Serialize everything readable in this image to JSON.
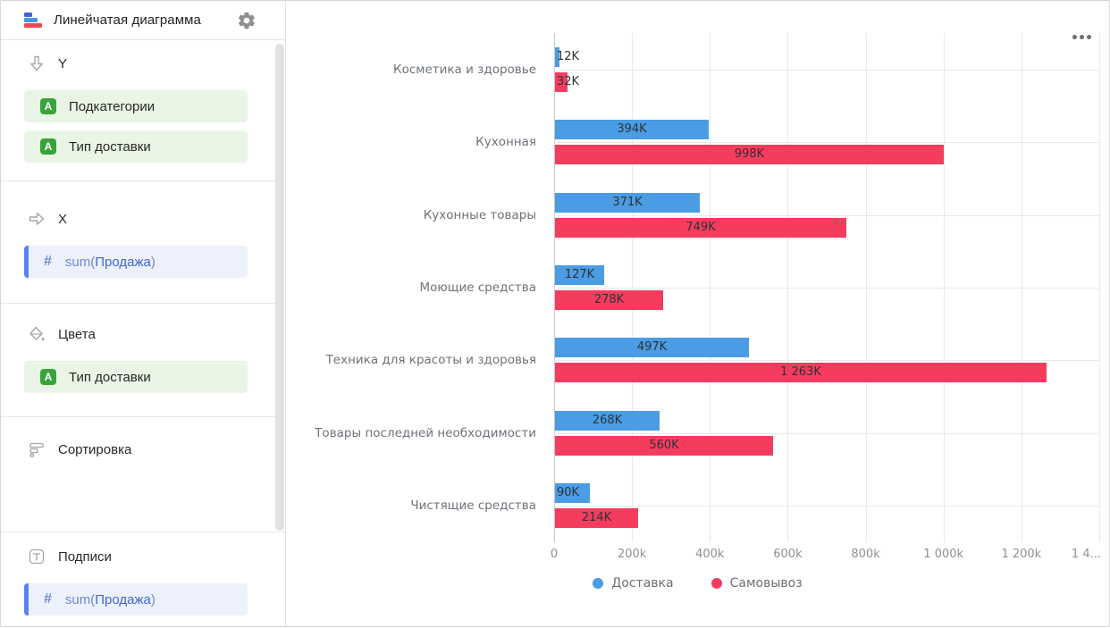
{
  "sidebar": {
    "title": "Линейчатая диаграмма",
    "field_icon_letter": "A",
    "sections": {
      "y": {
        "label": "Y",
        "fields": [
          {
            "label": "Подкатегории"
          },
          {
            "label": "Тип доставки"
          }
        ]
      },
      "x": {
        "label": "X",
        "field": {
          "prefix": "sum(",
          "name": "Продажа",
          "suffix": ")"
        }
      },
      "colors": {
        "label": "Цвета",
        "fields": [
          {
            "label": "Тип доставки"
          }
        ]
      },
      "sort": {
        "label": "Сортировка"
      },
      "labels": {
        "label": "Подписи",
        "field": {
          "prefix": "sum(",
          "name": "Продажа",
          "suffix": ")"
        }
      }
    }
  },
  "chart_data": {
    "type": "bar",
    "orientation": "horizontal",
    "title": "",
    "xlabel": "",
    "ylabel": "",
    "grid": true,
    "categories": [
      "Косметика и здоровье",
      "Кухонная",
      "Кухонные товары",
      "Моющие средства",
      "Техника для красоты и здоровья",
      "Товары последней необходимости",
      "Чистящие средства"
    ],
    "series": [
      {
        "name": "Доставка",
        "color": "#4a9ce4",
        "values": [
          12000,
          394000,
          371000,
          127000,
          497000,
          268000,
          90000
        ],
        "labels": [
          "12K",
          "394K",
          "371K",
          "127K",
          "497K",
          "268K",
          "90K"
        ]
      },
      {
        "name": "Самовывоз",
        "color": "#f53c5e",
        "values": [
          32000,
          998000,
          749000,
          278000,
          1263000,
          560000,
          214000
        ],
        "labels": [
          "32K",
          "998K",
          "749K",
          "278K",
          "1 263K",
          "560K",
          "214K"
        ]
      }
    ],
    "x_axis": {
      "max": 1400000,
      "tick_values": [
        0,
        200000,
        400000,
        600000,
        800000,
        1000000,
        1200000,
        1400000
      ],
      "ticks": [
        "0",
        "200k",
        "400k",
        "600k",
        "800k",
        "1 000k",
        "1 200k",
        "1 4..."
      ]
    },
    "legend": {
      "position": "bottom",
      "items": [
        "Доставка",
        "Самовывоз"
      ]
    }
  }
}
